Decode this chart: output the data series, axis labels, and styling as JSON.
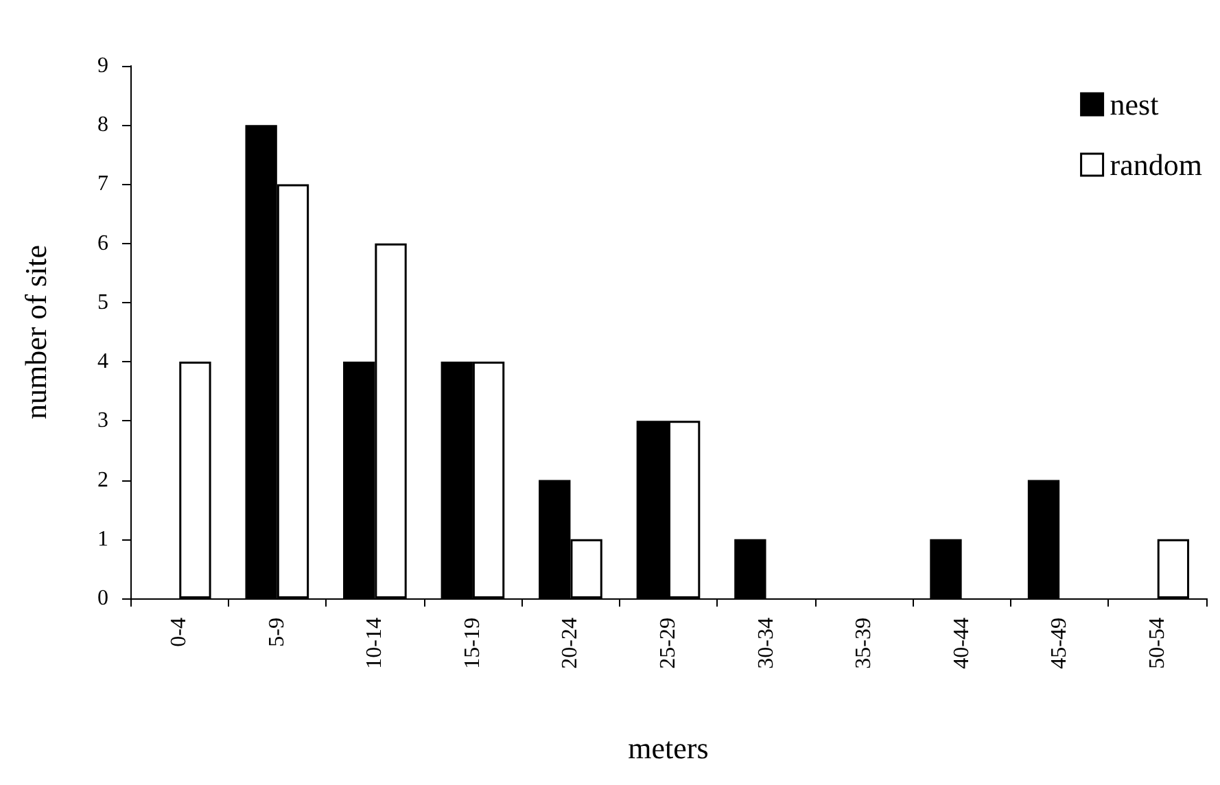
{
  "chart_data": {
    "type": "bar",
    "xlabel": "meters",
    "ylabel": "number of site",
    "categories": [
      "0-4",
      "5-9",
      "10-14",
      "15-19",
      "20-24",
      "25-29",
      "30-34",
      "35-39",
      "40-44",
      "45-49",
      "50-54"
    ],
    "series": [
      {
        "name": "nest",
        "color": "#000000",
        "values": [
          0,
          8,
          4,
          4,
          2,
          3,
          1,
          0,
          1,
          2,
          0
        ]
      },
      {
        "name": "random",
        "color": "#ffffff",
        "values": [
          4,
          7,
          6,
          4,
          1,
          3,
          0,
          0,
          0,
          0,
          1
        ]
      }
    ],
    "ylim": [
      0,
      9
    ],
    "yticks": [
      0,
      1,
      2,
      3,
      4,
      5,
      6,
      7,
      8,
      9
    ],
    "grid": false,
    "legend": "top right"
  }
}
